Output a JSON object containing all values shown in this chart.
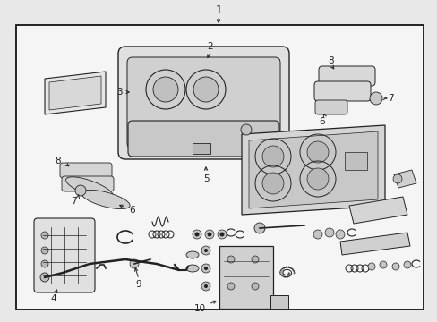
{
  "figsize": [
    4.89,
    3.6
  ],
  "dpi": 100,
  "bg_color": "#e8e8e8",
  "border_color": "#000000",
  "line_color": "#222222",
  "fill_light": "#f5f5f5",
  "fill_mid": "#d8d8d8",
  "fill_dark": "#b8b8b8"
}
